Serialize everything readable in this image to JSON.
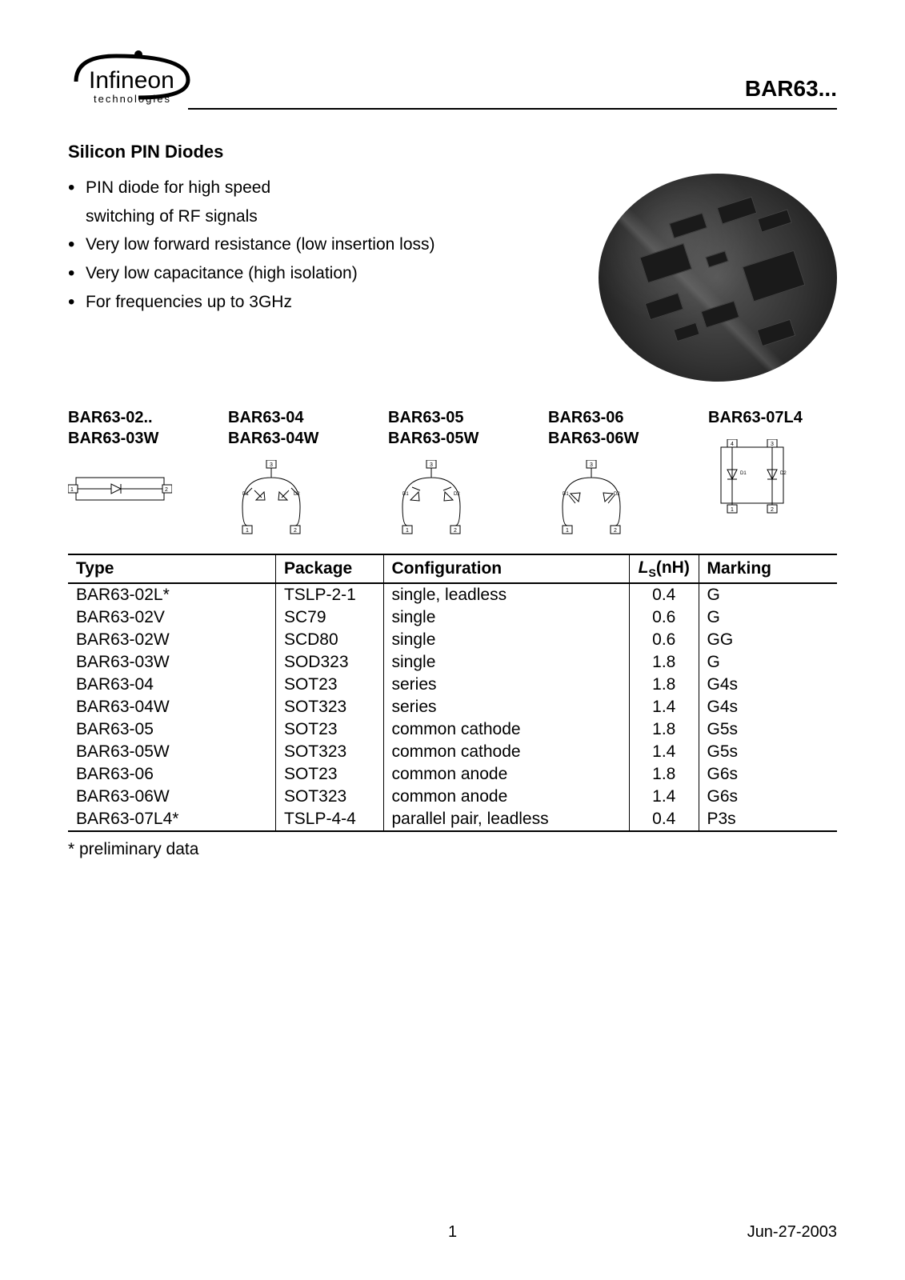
{
  "header": {
    "logo_main": "Infineon",
    "logo_sub": "technologies",
    "part_title": "BAR63..."
  },
  "section_title": "Silicon PIN Diodes",
  "features": [
    "PIN diode for high speed switching of RF signals",
    "Very low forward resistance (low insertion loss)",
    "Very low capacitance (high isolation)",
    "For frequencies up to 3GHz"
  ],
  "variants": [
    {
      "line1": "BAR63-02..",
      "line2": "BAR63-03W"
    },
    {
      "line1": "BAR63-04",
      "line2": "BAR63-04W"
    },
    {
      "line1": "BAR63-05",
      "line2": "BAR63-05W"
    },
    {
      "line1": "BAR63-06",
      "line2": "BAR63-06W"
    },
    {
      "line1": "BAR63-07L4",
      "line2": ""
    }
  ],
  "table": {
    "columns": {
      "type": "Type",
      "package": "Package",
      "config": "Configuration",
      "ls_it": "L",
      "ls_sub": "S",
      "ls_unit": "(nH)",
      "marking": "Marking"
    },
    "rows": [
      {
        "type": "BAR63-02L*",
        "package": "TSLP-2-1",
        "config": "single, leadless",
        "ls": "0.4",
        "marking": "G"
      },
      {
        "type": "BAR63-02V",
        "package": "SC79",
        "config": "single",
        "ls": "0.6",
        "marking": "G"
      },
      {
        "type": "BAR63-02W",
        "package": "SCD80",
        "config": "single",
        "ls": "0.6",
        "marking": "GG"
      },
      {
        "type": "BAR63-03W",
        "package": "SOD323",
        "config": "single",
        "ls": "1.8",
        "marking": "G"
      },
      {
        "type": "BAR63-04",
        "package": "SOT23",
        "config": "series",
        "ls": "1.8",
        "marking": "G4s"
      },
      {
        "type": "BAR63-04W",
        "package": "SOT323",
        "config": "series",
        "ls": "1.4",
        "marking": "G4s"
      },
      {
        "type": "BAR63-05",
        "package": "SOT23",
        "config": "common cathode",
        "ls": "1.8",
        "marking": "G5s"
      },
      {
        "type": "BAR63-05W",
        "package": "SOT323",
        "config": "common cathode",
        "ls": "1.4",
        "marking": "G5s"
      },
      {
        "type": "BAR63-06",
        "package": "SOT23",
        "config": "common anode",
        "ls": "1.8",
        "marking": "G6s"
      },
      {
        "type": "BAR63-06W",
        "package": "SOT323",
        "config": "common anode",
        "ls": "1.4",
        "marking": "G6s"
      },
      {
        "type": "BAR63-07L4*",
        "package": "TSLP-4-4",
        "config": "parallel pair, leadless",
        "ls": "0.4",
        "marking": "P3s"
      }
    ],
    "col_widths": [
      "27%",
      "14%",
      "32%",
      "9%",
      "18%"
    ]
  },
  "footnote": "* preliminary data",
  "footer": {
    "page": "1",
    "date": "Jun-27-2003"
  },
  "svg": {
    "stroke": "#000000",
    "stroke_width": 1.2,
    "text_color": "#000000",
    "pin_font_size": 7,
    "label_font_size": 6
  }
}
